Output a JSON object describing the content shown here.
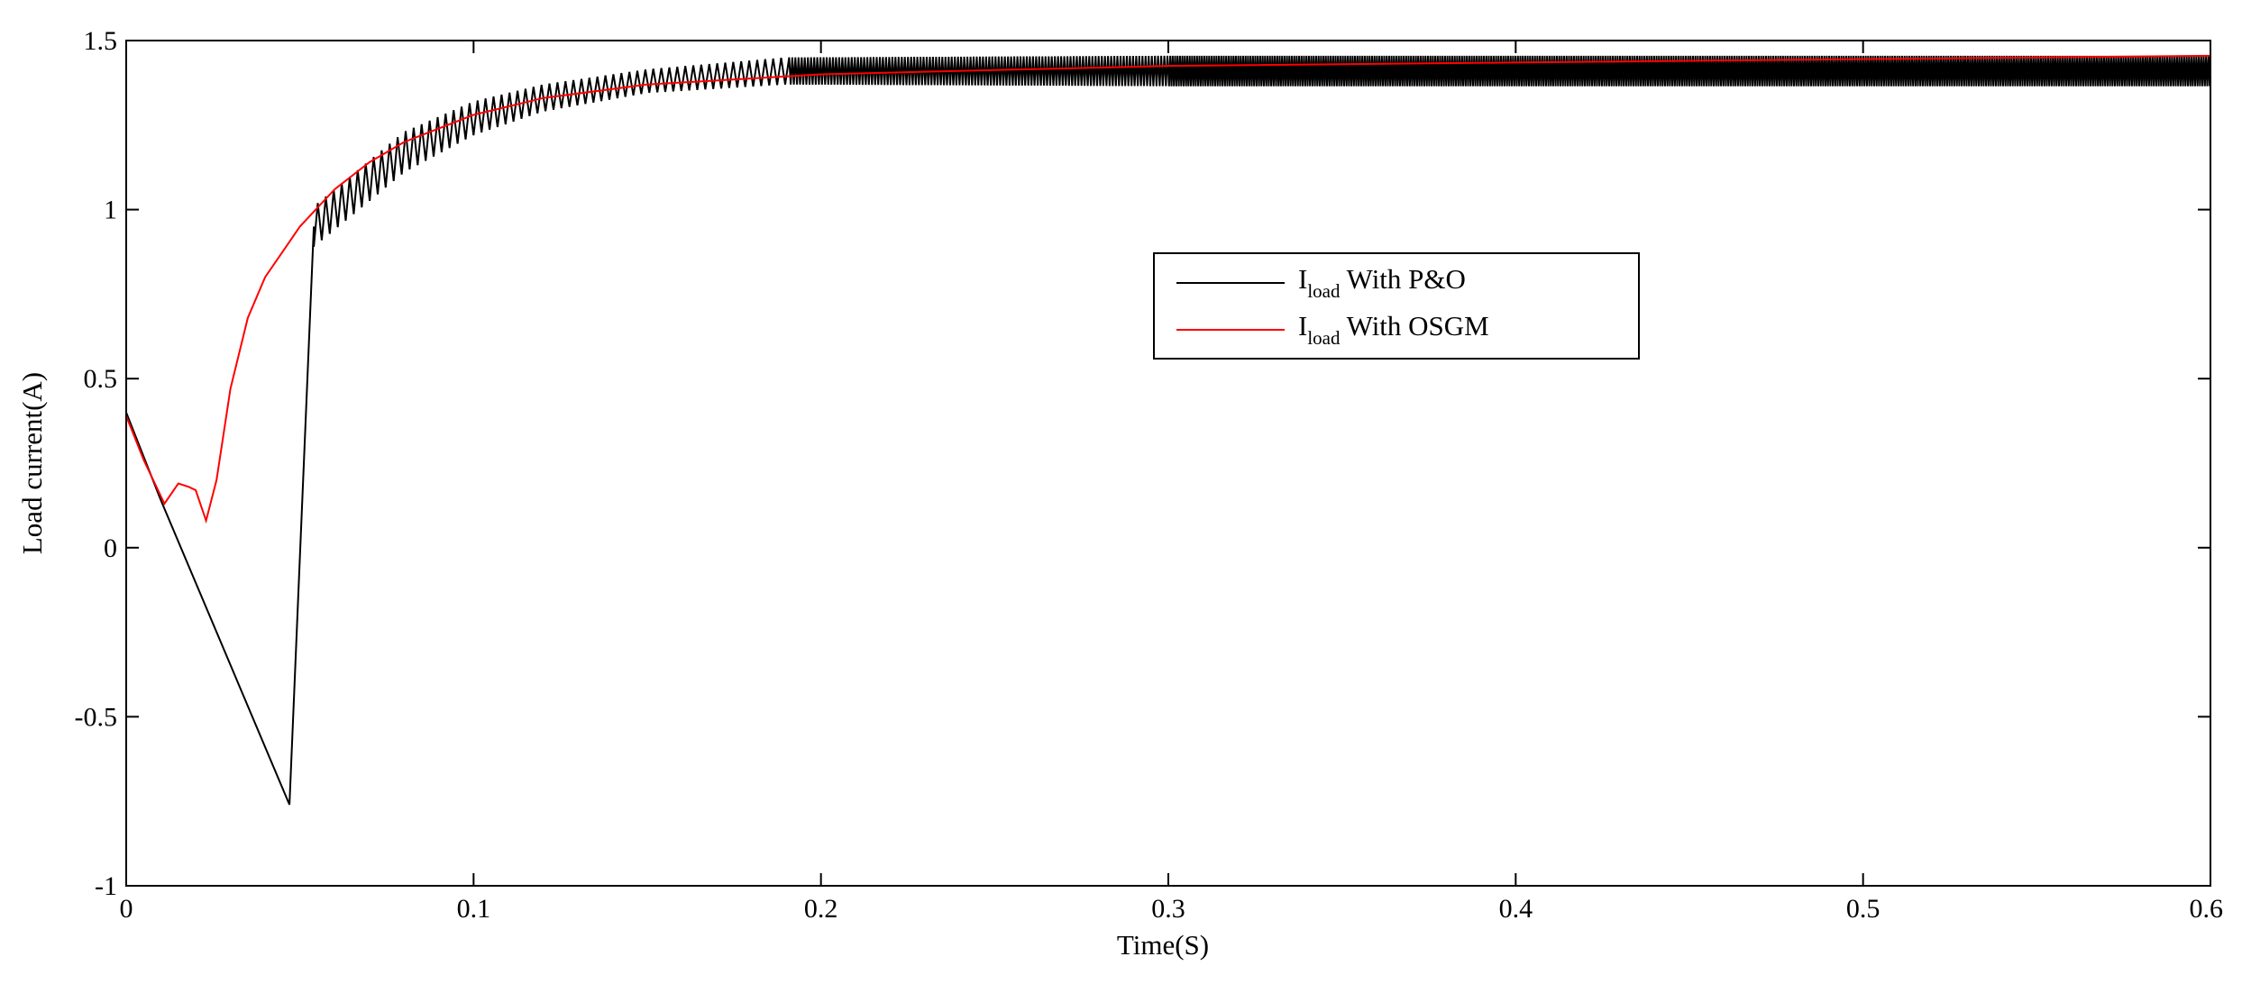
{
  "chart_data": {
    "type": "line",
    "title": "",
    "xlabel": "Time(S)",
    "ylabel": "Load current(A)",
    "xlim": [
      0,
      0.6
    ],
    "ylim": [
      -1,
      1.5
    ],
    "xticks": [
      "0",
      "0.1",
      "0.2",
      "0.3",
      "0.4",
      "0.5",
      "0.6"
    ],
    "yticks": [
      "-1",
      "-0.5",
      "0",
      "0.5",
      "1",
      "1.5"
    ],
    "grid": false,
    "legend_position": "upper-center-right",
    "series": [
      {
        "name_main": "I",
        "name_sub": "load",
        "name_rest": " With P&O",
        "color": "#000000",
        "x": [
          0.0,
          0.01,
          0.047,
          0.054,
          0.06,
          0.08,
          0.1,
          0.12,
          0.15,
          0.19,
          0.3,
          0.6
        ],
        "y": [
          0.4,
          0.14,
          -0.76,
          0.95,
          1.0,
          1.17,
          1.27,
          1.33,
          1.38,
          1.41,
          1.41,
          1.41
        ],
        "oscillation_amplitude": [
          0,
          0,
          0,
          0.06,
          0.06,
          0.06,
          0.05,
          0.04,
          0.035,
          0.04,
          0.045,
          0.045
        ]
      },
      {
        "name_main": "I",
        "name_sub": "load",
        "name_rest": " With OSGM",
        "color": "#ff0000",
        "x": [
          0.0,
          0.005,
          0.011,
          0.015,
          0.018,
          0.02,
          0.023,
          0.026,
          0.03,
          0.035,
          0.04,
          0.05,
          0.06,
          0.07,
          0.08,
          0.1,
          0.12,
          0.15,
          0.2,
          0.3,
          0.4,
          0.5,
          0.6
        ],
        "y": [
          0.39,
          0.26,
          0.13,
          0.19,
          0.18,
          0.17,
          0.08,
          0.2,
          0.47,
          0.68,
          0.8,
          0.95,
          1.06,
          1.14,
          1.2,
          1.28,
          1.33,
          1.37,
          1.4,
          1.425,
          1.435,
          1.445,
          1.455
        ]
      }
    ]
  }
}
